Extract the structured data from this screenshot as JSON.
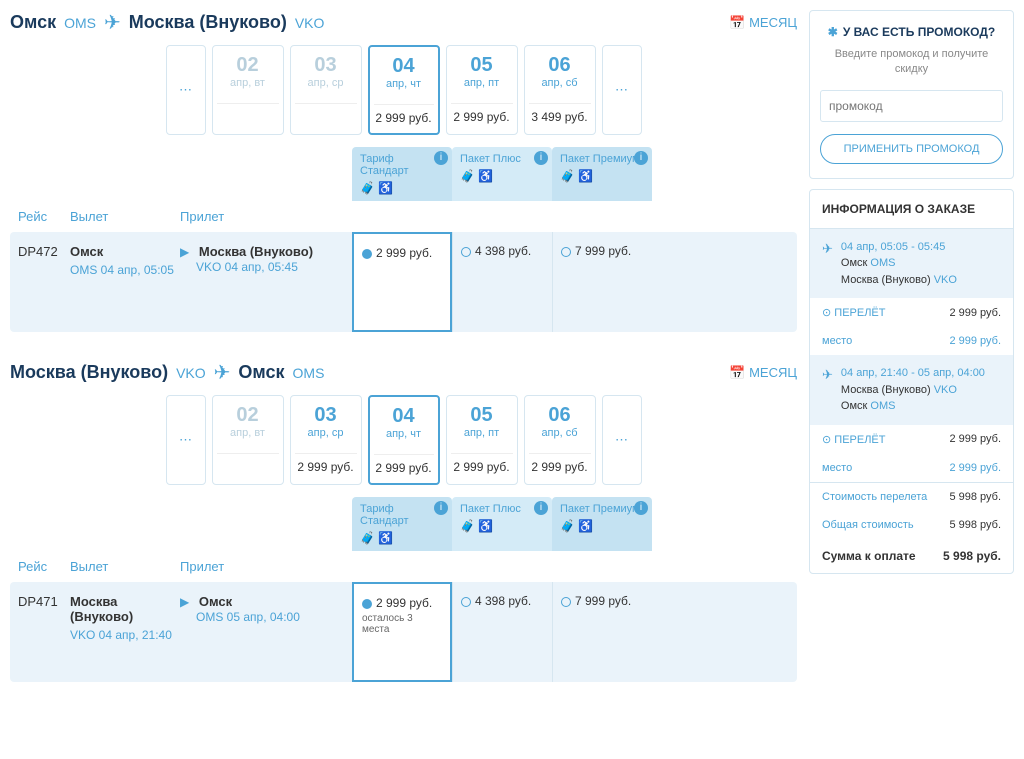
{
  "routes": [
    {
      "from_city": "Омск",
      "from_code": "OMS",
      "to_city": "Москва (Внуково)",
      "to_code": "VKO",
      "month_label": "МЕСЯЦ",
      "dates": [
        {
          "day": "02",
          "sub": "апр, вт",
          "price": "",
          "dim": true
        },
        {
          "day": "03",
          "sub": "апр, ср",
          "price": "",
          "dim": true
        },
        {
          "day": "04",
          "sub": "апр, чт",
          "price": "2 999 руб.",
          "selected": true
        },
        {
          "day": "05",
          "sub": "апр, пт",
          "price": "2 999 руб."
        },
        {
          "day": "06",
          "sub": "апр, сб",
          "price": "3 499 руб."
        }
      ],
      "fare_cols": [
        {
          "name": "Тариф Стандарт",
          "cls": "std"
        },
        {
          "name": "Пакет Плюс",
          "cls": "plus"
        },
        {
          "name": "Пакет Премиум",
          "cls": "prem"
        }
      ],
      "headers": {
        "flight": "Рейс",
        "dep": "Вылет",
        "arr": "Прилет"
      },
      "flight": {
        "num": "DP472",
        "dep_city": "Омск",
        "dep_detail": "OMS 04 апр, 05:05",
        "arr_city": "Москва (Внуково)",
        "arr_detail": "VKO 04 апр, 05:45",
        "fares": [
          {
            "price": "2 999 руб.",
            "selected": true
          },
          {
            "price": "4 398 руб."
          },
          {
            "price": "7 999 руб."
          }
        ]
      }
    },
    {
      "from_city": "Москва (Внуково)",
      "from_code": "VKO",
      "to_city": "Омск",
      "to_code": "OMS",
      "month_label": "МЕСЯЦ",
      "dates": [
        {
          "day": "02",
          "sub": "апр, вт",
          "price": "",
          "dim": true
        },
        {
          "day": "03",
          "sub": "апр, ср",
          "price": "2 999 руб."
        },
        {
          "day": "04",
          "sub": "апр, чт",
          "price": "2 999 руб.",
          "selected": true
        },
        {
          "day": "05",
          "sub": "апр, пт",
          "price": "2 999 руб."
        },
        {
          "day": "06",
          "sub": "апр, сб",
          "price": "2 999 руб."
        }
      ],
      "fare_cols": [
        {
          "name": "Тариф Стандарт",
          "cls": "std"
        },
        {
          "name": "Пакет Плюс",
          "cls": "plus"
        },
        {
          "name": "Пакет Премиум",
          "cls": "prem"
        }
      ],
      "headers": {
        "flight": "Рейс",
        "dep": "Вылет",
        "arr": "Прилет"
      },
      "flight": {
        "num": "DP471",
        "dep_city": "Москва (Внуково)",
        "dep_detail": "VKO 04 апр, 21:40",
        "arr_city": "Омск",
        "arr_detail": "OMS 05 апр, 04:00",
        "fares": [
          {
            "price": "2 999 руб.",
            "selected": true,
            "note": "осталось 3 места"
          },
          {
            "price": "4 398 руб."
          },
          {
            "price": "7 999 руб."
          }
        ]
      }
    }
  ],
  "promo": {
    "title": "У ВАС ЕСТЬ ПРОМОКОД?",
    "sub": "Введите промокод и получите скидку",
    "placeholder": "промокод",
    "btn": "ПРИМЕНИТЬ ПРОМОКОД"
  },
  "order": {
    "title": "ИНФОРМАЦИЯ О ЗАКАЗЕ",
    "seg1": {
      "time": "04 апр, 05:05 - 05:45",
      "from": "Омск",
      "from_code": "OMS",
      "to": "Москва (Внуково)",
      "to_code": "VKO"
    },
    "l_flight": "ПЕРЕЛЁТ",
    "l_seat": "место",
    "p1": "2 999 руб.",
    "p1s": "2 999 руб.",
    "seg2": {
      "time": "04 апр, 21:40 - 05 апр, 04:00",
      "from": "Москва (Внуково)",
      "from_code": "VKO",
      "to": "Омск",
      "to_code": "OMS"
    },
    "p2": "2 999 руб.",
    "p2s": "2 999 руб.",
    "cost_label": "Стоимость перелета",
    "cost": "5 998 руб.",
    "total_label": "Общая стоимость",
    "total": "5 998 руб.",
    "sum_label": "Сумма к оплате",
    "sum": "5 998 руб."
  }
}
